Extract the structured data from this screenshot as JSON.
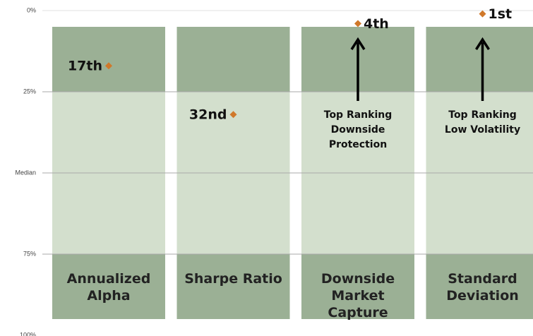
{
  "chart_data": {
    "type": "dot",
    "categories": [
      "Annualized Alpha",
      "Sharpe Ratio",
      "Downside Market Capture",
      "Standard Deviation"
    ],
    "values": [
      17,
      32,
      4,
      1
    ],
    "value_labels": [
      "17th",
      "32nd",
      "4th",
      "1st"
    ],
    "color": "#d0782a",
    "annotations": [
      null,
      null,
      "Top Ranking Downside Protection",
      "Top Ranking Low Volatility"
    ],
    "bands": [
      {
        "from": 5,
        "to": 25,
        "color": "#9bb095"
      },
      {
        "from": 25,
        "to": 75,
        "color": "#d3dfcd"
      },
      {
        "from": 75,
        "to": 95,
        "color": "#9bb095"
      }
    ],
    "ylim": [
      0,
      100
    ],
    "y_reversed": true,
    "yticks": [
      {
        "value": 0,
        "label": "0%"
      },
      {
        "value": 25,
        "label": "25%"
      },
      {
        "value": 50,
        "label": "Median"
      },
      {
        "value": 75,
        "label": "75%"
      },
      {
        "value": 100,
        "label": "100%"
      }
    ],
    "grid": true
  }
}
